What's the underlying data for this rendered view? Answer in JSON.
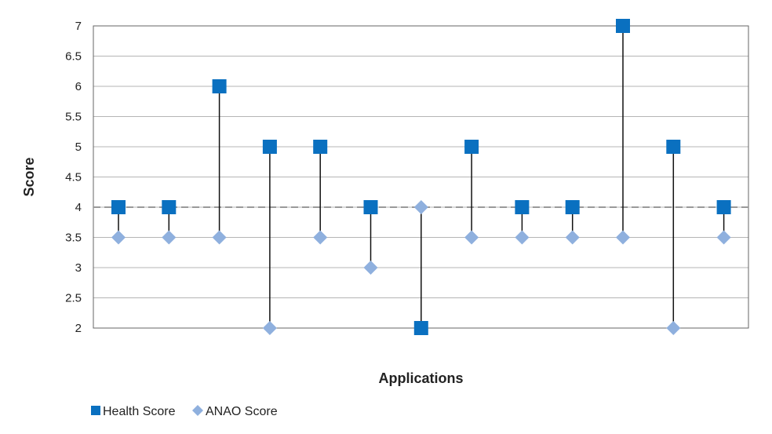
{
  "chart_data": {
    "type": "scatter",
    "xlabel": "Applications",
    "ylabel": "Score",
    "ylim": [
      2,
      7
    ],
    "yticks": [
      2,
      2.5,
      3,
      3.5,
      4,
      4.5,
      5,
      5.5,
      6,
      6.5,
      7
    ],
    "reference_line": 4,
    "grid": true,
    "legend_position": "bottom-left",
    "series": [
      {
        "name": "Health Score",
        "marker": "square",
        "color": "#0a70c0",
        "values": [
          4,
          4,
          6,
          5,
          5,
          4,
          2,
          5,
          4,
          4,
          7,
          5,
          4
        ]
      },
      {
        "name": "ANAO Score",
        "marker": "diamond",
        "color": "#8fb0de",
        "values": [
          3.5,
          3.5,
          3.5,
          2,
          3.5,
          3,
          4,
          3.5,
          3.5,
          3.5,
          3.5,
          2,
          3.5
        ]
      }
    ]
  }
}
